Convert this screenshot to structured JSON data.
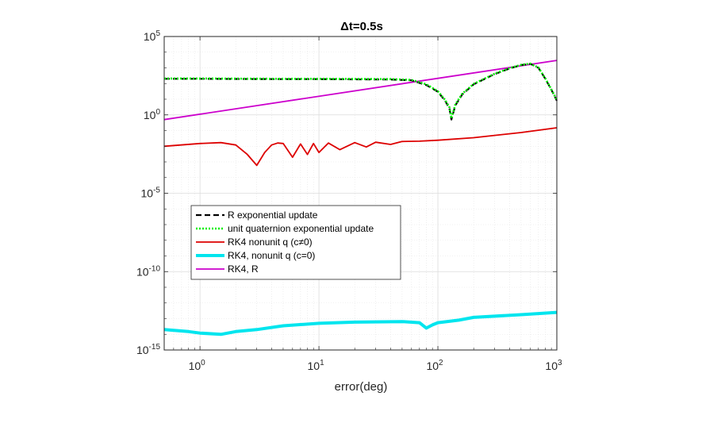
{
  "chart_data": {
    "type": "line",
    "title": "Δt=0.5s",
    "xlabel": "error(deg)",
    "ylabel": "",
    "xscale": "log",
    "yscale": "log",
    "xlim": [
      0.5,
      1000
    ],
    "ylim": [
      1e-15,
      100000
    ],
    "grid": true,
    "legend_position": "lower-left",
    "x_ticks": [
      {
        "value": 1,
        "base": "10",
        "exp": "0"
      },
      {
        "value": 10,
        "base": "10",
        "exp": "1"
      },
      {
        "value": 100,
        "base": "10",
        "exp": "2"
      },
      {
        "value": 1000,
        "base": "10",
        "exp": "3"
      }
    ],
    "y_ticks": [
      {
        "value": 100000,
        "base": "10",
        "exp": "5"
      },
      {
        "value": 1,
        "base": "10",
        "exp": "0"
      },
      {
        "value": 1e-05,
        "base": "10",
        "exp": "-5"
      },
      {
        "value": 1e-10,
        "base": "10",
        "exp": "-10"
      },
      {
        "value": 1e-15,
        "base": "10",
        "exp": "-15"
      }
    ],
    "series": [
      {
        "name": "R exponential update",
        "color": "#000000",
        "style": "dashed",
        "x": [
          0.5,
          1,
          2,
          5,
          10,
          20,
          40,
          60,
          80,
          100,
          115,
          125,
          130,
          140,
          160,
          200,
          300,
          400,
          500,
          600,
          700,
          800,
          900,
          1000
        ],
        "y": [
          200,
          200,
          195,
          190,
          190,
          185,
          180,
          160,
          80,
          30,
          8,
          2.5,
          0.5,
          4,
          20,
          90,
          400,
          900,
          1500,
          1800,
          1000,
          200,
          40,
          8
        ]
      },
      {
        "name": "unit quaternion exponential update",
        "color": "#00ee00",
        "style": "dotted",
        "x": [
          0.5,
          1,
          2,
          5,
          10,
          20,
          40,
          60,
          80,
          100,
          115,
          125,
          130,
          140,
          160,
          200,
          300,
          400,
          500,
          600,
          700,
          800,
          900,
          1000
        ],
        "y": [
          210,
          210,
          205,
          200,
          200,
          195,
          190,
          170,
          90,
          32,
          9,
          3,
          0.6,
          4.5,
          22,
          95,
          420,
          950,
          1550,
          1850,
          1050,
          210,
          42,
          9
        ]
      },
      {
        "name": "RK4 nonunit q (c≠0)",
        "color": "#dd0000",
        "style": "solid",
        "x": [
          0.5,
          1,
          1.5,
          2,
          2.5,
          3,
          3.5,
          4,
          4.5,
          5,
          6,
          7,
          8,
          9,
          10,
          12,
          15,
          20,
          25,
          30,
          40,
          50,
          70,
          100,
          200,
          500,
          1000
        ],
        "y": [
          0.01,
          0.015,
          0.017,
          0.012,
          0.003,
          0.0006,
          0.004,
          0.012,
          0.016,
          0.015,
          0.002,
          0.014,
          0.003,
          0.015,
          0.004,
          0.016,
          0.006,
          0.017,
          0.009,
          0.018,
          0.013,
          0.02,
          0.021,
          0.024,
          0.035,
          0.075,
          0.15
        ]
      },
      {
        "name": "RK4, nonunit q (c=0)",
        "color": "#00e5ee",
        "style": "solid-thick",
        "x": [
          0.5,
          0.8,
          1,
          1.5,
          2,
          3,
          5,
          10,
          20,
          50,
          70,
          80,
          90,
          100,
          150,
          200,
          500,
          1000
        ],
        "y": [
          2e-14,
          1.5e-14,
          1.2e-14,
          1e-14,
          1.5e-14,
          2e-14,
          3.5e-14,
          5e-14,
          6e-14,
          6.5e-14,
          5.5e-14,
          2.5e-14,
          4e-14,
          5.5e-14,
          8e-14,
          1.2e-13,
          1.8e-13,
          2.5e-13
        ]
      },
      {
        "name": "RK4, R",
        "color": "#cc00cc",
        "style": "solid",
        "x": [
          0.5,
          1000
        ],
        "y": [
          0.5,
          3000
        ]
      }
    ]
  }
}
